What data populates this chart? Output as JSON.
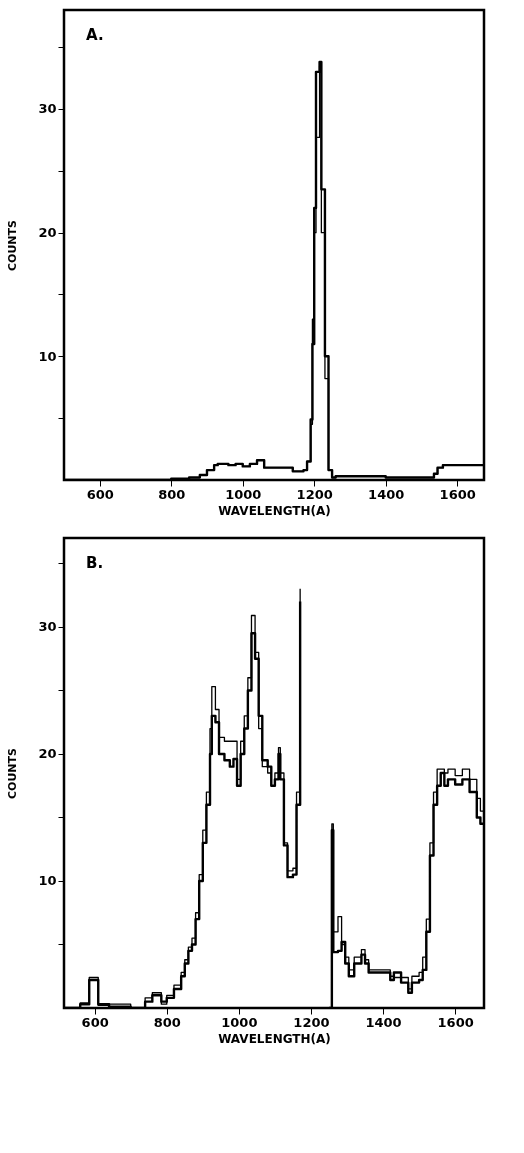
{
  "chart_data": [
    {
      "type": "step",
      "title": "A.",
      "xlabel": "WAVELENGTH(A)",
      "ylabel": "COUNTS",
      "xlim": [
        500,
        1675
      ],
      "ylim": [
        0,
        38
      ],
      "xticks": [
        600,
        800,
        1000,
        1200,
        1400,
        1600
      ],
      "yticks": [
        {
          "value": 5,
          "label": null
        },
        10,
        {
          "value": 15,
          "label": null
        },
        20,
        {
          "value": 25,
          "label": null
        },
        30,
        {
          "value": 35,
          "label": null
        }
      ],
      "grid": false,
      "legend": false,
      "series": [
        {
          "color": "#000000",
          "x": [
            500,
            800,
            850,
            880,
            900,
            920,
            930,
            960,
            980,
            1000,
            1020,
            1040,
            1060,
            1080,
            1120,
            1140,
            1170,
            1180,
            1190,
            1195,
            1200,
            1205,
            1215,
            1220,
            1230,
            1240,
            1250,
            1260,
            1300,
            1400,
            1520,
            1535,
            1545,
            1560,
            1675
          ],
          "values": [
            0,
            0.1,
            0.2,
            0.4,
            0.8,
            1.2,
            1.3,
            1.2,
            1.3,
            1.1,
            1.3,
            1.6,
            1.0,
            1.0,
            1.0,
            0.7,
            0.8,
            1.5,
            4.9,
            11,
            22,
            33,
            33.8,
            23.5,
            10,
            0.8,
            0.2,
            0.3,
            0.3,
            0.2,
            0.2,
            0.5,
            1.0,
            1.2,
            1.2
          ]
        },
        {
          "color": "#000000",
          "x": [
            500,
            800,
            850,
            880,
            900,
            920,
            930,
            960,
            980,
            1000,
            1020,
            1040,
            1060,
            1080,
            1120,
            1140,
            1170,
            1180,
            1190,
            1195,
            1200,
            1205,
            1215,
            1220,
            1230,
            1240,
            1250,
            1260,
            1300,
            1400,
            1520,
            1535,
            1545,
            1560,
            1675
          ],
          "values": [
            0,
            0.1,
            0.2,
            0.4,
            0.8,
            1.2,
            1.3,
            1.2,
            1.3,
            1.1,
            1.3,
            1.6,
            1.0,
            1.0,
            1.0,
            0.7,
            0.8,
            1.5,
            4.5,
            13,
            20,
            27.7,
            33.5,
            20,
            8.2,
            0.8,
            0.2,
            0.3,
            0.3,
            0.2,
            0.2,
            0.5,
            1.0,
            1.2,
            1.2
          ]
        }
      ]
    },
    {
      "type": "step",
      "title": "B.",
      "xlabel": "WAVELENGTH(A)",
      "ylabel": "COUNTS",
      "xlim": [
        515,
        1680
      ],
      "ylim": [
        0,
        37
      ],
      "xticks": [
        600,
        800,
        1000,
        1200,
        1400,
        1600
      ],
      "yticks": [
        {
          "value": 5,
          "label": null
        },
        10,
        {
          "value": 15,
          "label": null
        },
        20,
        {
          "value": 25,
          "label": null
        },
        30,
        {
          "value": 35,
          "label": null
        }
      ],
      "grid": false,
      "legend": false,
      "series": [
        {
          "color": "#000000",
          "x": [
            515,
            560,
            585,
            610,
            640,
            700,
            740,
            760,
            785,
            800,
            820,
            840,
            850,
            860,
            870,
            880,
            890,
            900,
            910,
            920,
            925,
            935,
            945,
            960,
            975,
            985,
            995,
            1005,
            1015,
            1025,
            1035,
            1045,
            1055,
            1065,
            1080,
            1090,
            1100,
            1110,
            1115,
            1125,
            1135,
            1150,
            1160,
            1170,
            1180,
            1245,
            1250,
            1258,
            1262,
            1275,
            1285,
            1295,
            1305,
            1320,
            1340,
            1350,
            1360,
            1380,
            1400,
            1420,
            1430,
            1450,
            1470,
            1480,
            1500,
            1510,
            1520,
            1530,
            1540,
            1550,
            1560,
            1570,
            1580,
            1600,
            1620,
            1640,
            1660,
            1670,
            1680
          ],
          "values": [
            0,
            0.3,
            2.2,
            0.3,
            0.1,
            0,
            0.5,
            1,
            0.5,
            0.8,
            1.5,
            2.5,
            3.5,
            4.5,
            5,
            7,
            10,
            13,
            16,
            20,
            23,
            22.5,
            20,
            19.5,
            19,
            19.6,
            17.5,
            20,
            22,
            25,
            29.5,
            27.5,
            23,
            19.5,
            19,
            17.5,
            18,
            20,
            18,
            12.8,
            10.3,
            10.5,
            16,
            32,
            null,
            null,
            0,
            14,
            4.4,
            4.5,
            5.2,
            3.5,
            2.5,
            3.5,
            4.2,
            3.5,
            2.8,
            2.8,
            2.8,
            2.2,
            2.8,
            2,
            1.2,
            2,
            2.2,
            3,
            6,
            12,
            16,
            17.5,
            18.5,
            17.5,
            18,
            17.6,
            18,
            17,
            15,
            14.5,
            14.5
          ]
        },
        {
          "color": "#000000",
          "x": [
            515,
            560,
            585,
            610,
            640,
            700,
            740,
            760,
            785,
            800,
            820,
            840,
            850,
            860,
            870,
            880,
            890,
            900,
            910,
            920,
            925,
            935,
            945,
            960,
            975,
            985,
            995,
            1005,
            1015,
            1025,
            1035,
            1045,
            1055,
            1065,
            1080,
            1090,
            1100,
            1110,
            1115,
            1125,
            1135,
            1150,
            1160,
            1170,
            1180,
            1245,
            1250,
            1258,
            1262,
            1275,
            1285,
            1295,
            1305,
            1320,
            1340,
            1350,
            1360,
            1380,
            1400,
            1420,
            1430,
            1450,
            1470,
            1480,
            1500,
            1510,
            1520,
            1530,
            1540,
            1550,
            1560,
            1570,
            1580,
            1600,
            1620,
            1640,
            1660,
            1670,
            1680
          ],
          "values": [
            0,
            0.4,
            2.4,
            0.2,
            0.3,
            0,
            0.8,
            1.2,
            0.3,
            1,
            1.8,
            2.8,
            3.8,
            4.8,
            5.5,
            7.5,
            10.5,
            14,
            17,
            22,
            25.3,
            23.5,
            21.3,
            21,
            21,
            21,
            18,
            21,
            23,
            26,
            30.9,
            28,
            22,
            19,
            18.5,
            17.5,
            18.5,
            20.5,
            18.5,
            13,
            10.8,
            11,
            17,
            33,
            null,
            null,
            0,
            14.5,
            6,
            7.2,
            5,
            4,
            3,
            4,
            4.6,
            3.8,
            3,
            3,
            3,
            2.5,
            2.4,
            2.4,
            1.5,
            2.5,
            2.8,
            4,
            7,
            13,
            17,
            18.8,
            18.8,
            18.5,
            18.8,
            18.3,
            18.8,
            18,
            16.5,
            15.5,
            15.5
          ]
        }
      ]
    }
  ]
}
